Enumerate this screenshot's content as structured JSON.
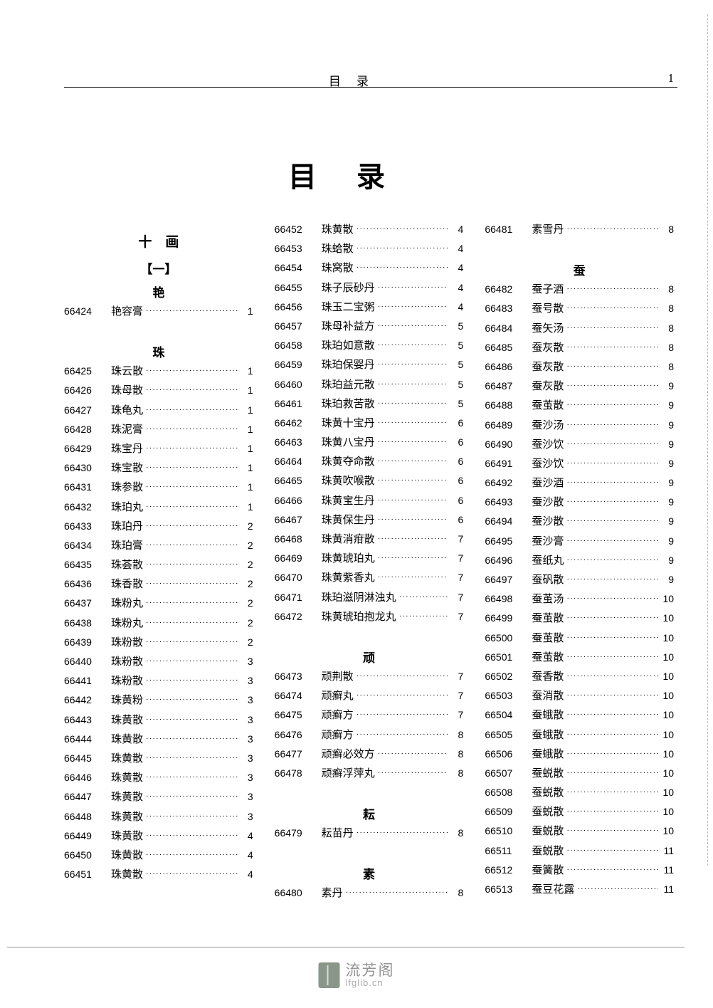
{
  "header": {
    "running_title": "目录",
    "page_no": "1"
  },
  "main_title": "目录",
  "watermark": {
    "cn": "流芳阁",
    "url": "lfglib.cn"
  },
  "columns": [
    {
      "blocks": [
        {
          "type": "heading",
          "text": "十　画"
        },
        {
          "type": "subheading",
          "text": "【一】"
        },
        {
          "type": "subheading",
          "text": "艳"
        },
        {
          "type": "entry",
          "id": "66424",
          "name": "艳容膏",
          "page": "1"
        },
        {
          "type": "spacer"
        },
        {
          "type": "subheading",
          "text": "珠"
        },
        {
          "type": "entry",
          "id": "66425",
          "name": "珠云散",
          "page": "1"
        },
        {
          "type": "entry",
          "id": "66426",
          "name": "珠母散",
          "page": "1"
        },
        {
          "type": "entry",
          "id": "66427",
          "name": "珠龟丸",
          "page": "1"
        },
        {
          "type": "entry",
          "id": "66428",
          "name": "珠泥膏",
          "page": "1"
        },
        {
          "type": "entry",
          "id": "66429",
          "name": "珠宝丹",
          "page": "1"
        },
        {
          "type": "entry",
          "id": "66430",
          "name": "珠宝散",
          "page": "1"
        },
        {
          "type": "entry",
          "id": "66431",
          "name": "珠参散",
          "page": "1"
        },
        {
          "type": "entry",
          "id": "66432",
          "name": "珠珀丸",
          "page": "1"
        },
        {
          "type": "entry",
          "id": "66433",
          "name": "珠珀丹",
          "page": "2"
        },
        {
          "type": "entry",
          "id": "66434",
          "name": "珠珀膏",
          "page": "2"
        },
        {
          "type": "entry",
          "id": "66435",
          "name": "珠荟散",
          "page": "2"
        },
        {
          "type": "entry",
          "id": "66436",
          "name": "珠香散",
          "page": "2"
        },
        {
          "type": "entry",
          "id": "66437",
          "name": "珠粉丸",
          "page": "2"
        },
        {
          "type": "entry",
          "id": "66438",
          "name": "珠粉丸",
          "page": "2"
        },
        {
          "type": "entry",
          "id": "66439",
          "name": "珠粉散",
          "page": "2"
        },
        {
          "type": "entry",
          "id": "66440",
          "name": "珠粉散",
          "page": "3"
        },
        {
          "type": "entry",
          "id": "66441",
          "name": "珠粉散",
          "page": "3"
        },
        {
          "type": "entry",
          "id": "66442",
          "name": "珠黄粉",
          "page": "3"
        },
        {
          "type": "entry",
          "id": "66443",
          "name": "珠黄散",
          "page": "3"
        },
        {
          "type": "entry",
          "id": "66444",
          "name": "珠黄散",
          "page": "3"
        },
        {
          "type": "entry",
          "id": "66445",
          "name": "珠黄散",
          "page": "3"
        },
        {
          "type": "entry",
          "id": "66446",
          "name": "珠黄散",
          "page": "3"
        },
        {
          "type": "entry",
          "id": "66447",
          "name": "珠黄散",
          "page": "3"
        },
        {
          "type": "entry",
          "id": "66448",
          "name": "珠黄散",
          "page": "3"
        },
        {
          "type": "entry",
          "id": "66449",
          "name": "珠黄散",
          "page": "4"
        },
        {
          "type": "entry",
          "id": "66450",
          "name": "珠黄散",
          "page": "4"
        },
        {
          "type": "entry",
          "id": "66451",
          "name": "珠黄散",
          "page": "4"
        }
      ]
    },
    {
      "blocks": [
        {
          "type": "entry",
          "id": "66452",
          "name": "珠黄散",
          "page": "4"
        },
        {
          "type": "entry",
          "id": "66453",
          "name": "珠蛤散",
          "page": "4"
        },
        {
          "type": "entry",
          "id": "66454",
          "name": "珠窝散",
          "page": "4"
        },
        {
          "type": "entry",
          "id": "66455",
          "name": "珠子辰砂丹",
          "page": "4"
        },
        {
          "type": "entry",
          "id": "66456",
          "name": "珠玉二宝粥",
          "page": "4"
        },
        {
          "type": "entry",
          "id": "66457",
          "name": "珠母补益方",
          "page": "5"
        },
        {
          "type": "entry",
          "id": "66458",
          "name": "珠珀如意散",
          "page": "5"
        },
        {
          "type": "entry",
          "id": "66459",
          "name": "珠珀保婴丹",
          "page": "5"
        },
        {
          "type": "entry",
          "id": "66460",
          "name": "珠珀益元散",
          "page": "5"
        },
        {
          "type": "entry",
          "id": "66461",
          "name": "珠珀救苦散",
          "page": "5"
        },
        {
          "type": "entry",
          "id": "66462",
          "name": "珠黄十宝丹",
          "page": "6"
        },
        {
          "type": "entry",
          "id": "66463",
          "name": "珠黄八宝丹",
          "page": "6"
        },
        {
          "type": "entry",
          "id": "66464",
          "name": "珠黄夺命散",
          "page": "6"
        },
        {
          "type": "entry",
          "id": "66465",
          "name": "珠黄吹喉散",
          "page": "6"
        },
        {
          "type": "entry",
          "id": "66466",
          "name": "珠黄宝生丹",
          "page": "6"
        },
        {
          "type": "entry",
          "id": "66467",
          "name": "珠黄保生丹",
          "page": "6"
        },
        {
          "type": "entry",
          "id": "66468",
          "name": "珠黄消疳散",
          "page": "7"
        },
        {
          "type": "entry",
          "id": "66469",
          "name": "珠黄琥珀丸",
          "page": "7"
        },
        {
          "type": "entry",
          "id": "66470",
          "name": "珠黄紫香丸",
          "page": "7"
        },
        {
          "type": "entry",
          "id": "66471",
          "name": "珠珀滋阴淋浊丸",
          "page": "7"
        },
        {
          "type": "entry",
          "id": "66472",
          "name": "珠黄琥珀抱龙丸",
          "page": "7"
        },
        {
          "type": "spacer"
        },
        {
          "type": "subheading",
          "text": "顽"
        },
        {
          "type": "entry",
          "id": "66473",
          "name": "顽荆散",
          "page": "7"
        },
        {
          "type": "entry",
          "id": "66474",
          "name": "顽癣丸",
          "page": "7"
        },
        {
          "type": "entry",
          "id": "66475",
          "name": "顽癣方",
          "page": "7"
        },
        {
          "type": "entry",
          "id": "66476",
          "name": "顽癣方",
          "page": "8"
        },
        {
          "type": "entry",
          "id": "66477",
          "name": "顽癣必效方",
          "page": "8"
        },
        {
          "type": "entry",
          "id": "66478",
          "name": "顽癣浮萍丸",
          "page": "8"
        },
        {
          "type": "spacer"
        },
        {
          "type": "subheading",
          "text": "耘"
        },
        {
          "type": "entry",
          "id": "66479",
          "name": "耘苗丹",
          "page": "8"
        },
        {
          "type": "spacer"
        },
        {
          "type": "subheading",
          "text": "素"
        },
        {
          "type": "entry",
          "id": "66480",
          "name": "素丹",
          "page": "8"
        }
      ]
    },
    {
      "blocks": [
        {
          "type": "entry",
          "id": "66481",
          "name": "素雪丹",
          "page": "8"
        },
        {
          "type": "spacer"
        },
        {
          "type": "subheading",
          "text": "蚕"
        },
        {
          "type": "entry",
          "id": "66482",
          "name": "蚕子酒",
          "page": "8"
        },
        {
          "type": "entry",
          "id": "66483",
          "name": "蚕号散",
          "page": "8"
        },
        {
          "type": "entry",
          "id": "66484",
          "name": "蚕矢汤",
          "page": "8"
        },
        {
          "type": "entry",
          "id": "66485",
          "name": "蚕灰散",
          "page": "8"
        },
        {
          "type": "entry",
          "id": "66486",
          "name": "蚕灰散",
          "page": "8"
        },
        {
          "type": "entry",
          "id": "66487",
          "name": "蚕灰散",
          "page": "9"
        },
        {
          "type": "entry",
          "id": "66488",
          "name": "蚕茧散",
          "page": "9"
        },
        {
          "type": "entry",
          "id": "66489",
          "name": "蚕沙汤",
          "page": "9"
        },
        {
          "type": "entry",
          "id": "66490",
          "name": "蚕沙饮",
          "page": "9"
        },
        {
          "type": "entry",
          "id": "66491",
          "name": "蚕沙饮",
          "page": "9"
        },
        {
          "type": "entry",
          "id": "66492",
          "name": "蚕沙酒",
          "page": "9"
        },
        {
          "type": "entry",
          "id": "66493",
          "name": "蚕沙散",
          "page": "9"
        },
        {
          "type": "entry",
          "id": "66494",
          "name": "蚕沙散",
          "page": "9"
        },
        {
          "type": "entry",
          "id": "66495",
          "name": "蚕沙膏",
          "page": "9"
        },
        {
          "type": "entry",
          "id": "66496",
          "name": "蚕纸丸",
          "page": "9"
        },
        {
          "type": "entry",
          "id": "66497",
          "name": "蚕矾散",
          "page": "9"
        },
        {
          "type": "entry",
          "id": "66498",
          "name": "蚕茧汤",
          "page": "10"
        },
        {
          "type": "entry",
          "id": "66499",
          "name": "蚕茧散",
          "page": "10"
        },
        {
          "type": "entry",
          "id": "66500",
          "name": "蚕茧散",
          "page": "10"
        },
        {
          "type": "entry",
          "id": "66501",
          "name": "蚕茧散",
          "page": "10"
        },
        {
          "type": "entry",
          "id": "66502",
          "name": "蚕香散",
          "page": "10"
        },
        {
          "type": "entry",
          "id": "66503",
          "name": "蚕消散",
          "page": "10"
        },
        {
          "type": "entry",
          "id": "66504",
          "name": "蚕蛾散",
          "page": "10"
        },
        {
          "type": "entry",
          "id": "66505",
          "name": "蚕蛾散",
          "page": "10"
        },
        {
          "type": "entry",
          "id": "66506",
          "name": "蚕蛾散",
          "page": "10"
        },
        {
          "type": "entry",
          "id": "66507",
          "name": "蚕蜕散",
          "page": "10"
        },
        {
          "type": "entry",
          "id": "66508",
          "name": "蚕蜕散",
          "page": "10"
        },
        {
          "type": "entry",
          "id": "66509",
          "name": "蚕蜕散",
          "page": "10"
        },
        {
          "type": "entry",
          "id": "66510",
          "name": "蚕蜕散",
          "page": "10"
        },
        {
          "type": "entry",
          "id": "66511",
          "name": "蚕蜕散",
          "page": "11"
        },
        {
          "type": "entry",
          "id": "66512",
          "name": "蚕簧散",
          "page": "11"
        },
        {
          "type": "entry",
          "id": "66513",
          "name": "蚕豆花露",
          "page": "11"
        }
      ]
    }
  ]
}
